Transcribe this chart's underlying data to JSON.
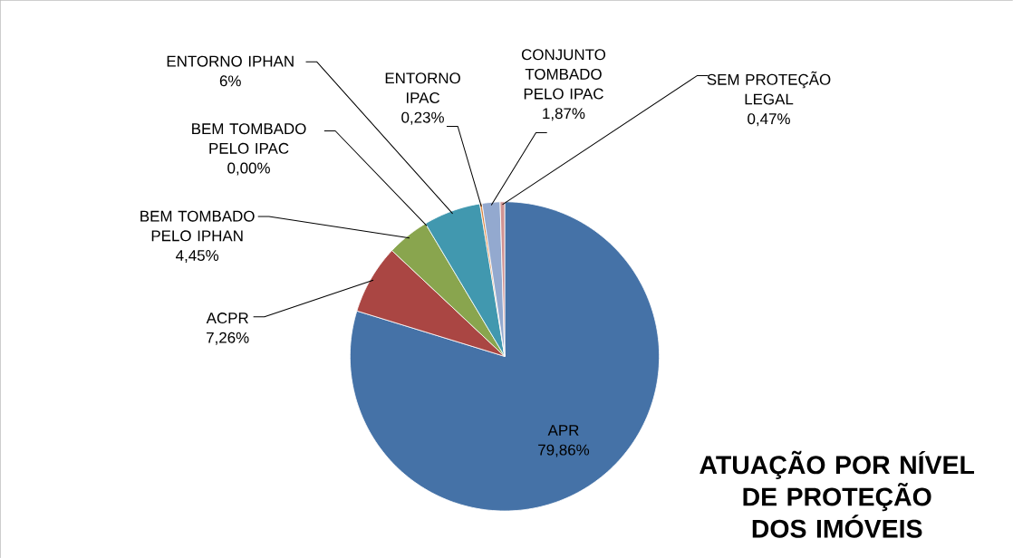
{
  "chart_data": {
    "type": "pie",
    "title": "ATUAÇÃO POR NÍVEL DE PROTEÇÃO DOS IMÓVEIS",
    "categories": [
      "APR",
      "ACPR",
      "BEM TOMBADO PELO IPHAN",
      "BEM TOMBADO PELO IPAC",
      "ENTORNO IPHAN",
      "ENTORNO IPAC",
      "CONJUNTO TOMBADO PELO IPAC",
      "SEM PROTEÇÃO LEGAL"
    ],
    "values": [
      79.86,
      7.26,
      4.45,
      0.0,
      6,
      0.23,
      1.87,
      0.47
    ],
    "value_labels": [
      "79,86%",
      "7,26%",
      "4,45%",
      "0,00%",
      "6%",
      "0,23%",
      "1,87%",
      "0,47%"
    ],
    "colors": [
      "#4572a7",
      "#aa4643",
      "#89a54e",
      "#71588f",
      "#4198af",
      "#db843d",
      "#93a9cf",
      "#d19392"
    ]
  }
}
